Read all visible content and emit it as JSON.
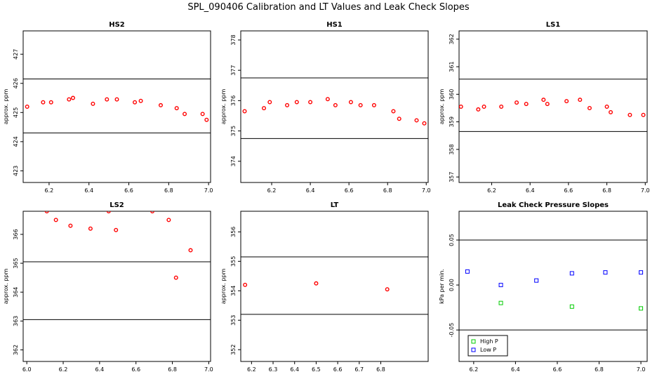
{
  "title": "SPL_090406  Calibration and LT Values and Leak Check Slopes",
  "colors": {
    "point_red": "#ff0000",
    "high_p": "#00cc00",
    "low_p": "#0000ff",
    "axis": "#000000"
  },
  "chart_data": [
    {
      "type": "scatter",
      "title": "HS2",
      "ylabel": "approx. ppm",
      "xlim": [
        6.07,
        7.01
      ],
      "ylim": [
        422.6,
        427.8
      ],
      "xticks": [
        6.2,
        6.4,
        6.6,
        6.8,
        7.0
      ],
      "yticks": [
        423,
        424,
        425,
        426,
        427
      ],
      "hlines": [
        426.15,
        424.3
      ],
      "series": [
        {
          "color": "#ff0000",
          "x": [
            6.09,
            6.17,
            6.21,
            6.3,
            6.32,
            6.42,
            6.49,
            6.54,
            6.63,
            6.66,
            6.76,
            6.84,
            6.88,
            6.97,
            6.99
          ],
          "y": [
            425.2,
            425.35,
            425.35,
            425.45,
            425.5,
            425.3,
            425.45,
            425.45,
            425.35,
            425.4,
            425.25,
            425.15,
            424.95,
            424.95,
            424.75
          ]
        }
      ]
    },
    {
      "type": "scatter",
      "title": "HS1",
      "ylabel": "approx. ppm",
      "xlim": [
        6.04,
        7.01
      ],
      "ylim": [
        373.3,
        378.3
      ],
      "xticks": [
        6.2,
        6.4,
        6.6,
        6.8,
        7.0
      ],
      "yticks": [
        374,
        375,
        376,
        377,
        378
      ],
      "hlines": [
        376.75,
        374.75
      ],
      "series": [
        {
          "color": "#ff0000",
          "x": [
            6.06,
            6.16,
            6.19,
            6.28,
            6.33,
            6.4,
            6.49,
            6.53,
            6.61,
            6.66,
            6.73,
            6.83,
            6.86,
            6.95,
            6.99
          ],
          "y": [
            375.65,
            375.75,
            375.95,
            375.85,
            375.95,
            375.95,
            376.05,
            375.85,
            375.95,
            375.85,
            375.85,
            375.65,
            375.4,
            375.35,
            375.25
          ]
        }
      ]
    },
    {
      "type": "scatter",
      "title": "LS1",
      "ylabel": "approx. ppm",
      "xlim": [
        6.03,
        7.01
      ],
      "ylim": [
        356.8,
        362.3
      ],
      "xticks": [
        6.2,
        6.4,
        6.6,
        6.8,
        7.0
      ],
      "yticks": [
        357,
        358,
        359,
        360,
        361,
        362
      ],
      "hlines": [
        360.55,
        358.65
      ],
      "series": [
        {
          "color": "#ff0000",
          "x": [
            6.04,
            6.13,
            6.16,
            6.25,
            6.33,
            6.38,
            6.47,
            6.49,
            6.59,
            6.66,
            6.71,
            6.8,
            6.82,
            6.92,
            6.99
          ],
          "y": [
            359.55,
            359.45,
            359.55,
            359.55,
            359.7,
            359.65,
            359.8,
            359.65,
            359.75,
            359.8,
            359.5,
            359.55,
            359.35,
            359.25,
            359.25
          ]
        }
      ]
    },
    {
      "type": "scatter",
      "title": "LS2",
      "ylabel": "approx. ppm",
      "xlim": [
        5.98,
        7.01
      ],
      "ylim": [
        361.6,
        366.8
      ],
      "xticks": [
        6.0,
        6.2,
        6.4,
        6.6,
        6.8,
        7.0
      ],
      "yticks": [
        362,
        363,
        364,
        365,
        366
      ],
      "hlines": [
        365.05,
        363.05
      ],
      "series": [
        {
          "color": "#ff0000",
          "x": [
            6.11,
            6.16,
            6.24,
            6.35,
            6.45,
            6.49,
            6.69,
            6.78,
            6.82,
            6.9
          ],
          "y": [
            366.8,
            366.5,
            366.3,
            366.2,
            366.8,
            366.15,
            366.8,
            366.5,
            364.5,
            365.45
          ]
        }
      ]
    },
    {
      "type": "scatter",
      "title": "LT",
      "ylabel": "approx. ppm",
      "xlim": [
        6.15,
        7.02
      ],
      "ylim": [
        351.6,
        356.7
      ],
      "xticks": [
        6.2,
        6.3,
        6.4,
        6.5,
        6.6,
        6.7,
        6.8
      ],
      "yticks": [
        352,
        353,
        354,
        355,
        356
      ],
      "hlines": [
        355.15,
        353.2
      ],
      "series": [
        {
          "color": "#ff0000",
          "x": [
            6.17,
            6.5,
            6.83
          ],
          "y": [
            354.2,
            354.25,
            354.05
          ]
        }
      ]
    },
    {
      "type": "scatter",
      "title": "Leak Check Pressure Slopes",
      "ylabel": "kPa per min.",
      "xlim": [
        6.13,
        7.03
      ],
      "ylim": [
        -0.085,
        0.082
      ],
      "xticks": [
        6.2,
        6.4,
        6.6,
        6.8,
        7.0
      ],
      "yticks": [
        -0.05,
        0.0,
        0.05
      ],
      "ytick_labels": [
        "-0.05",
        "0.00",
        "0.05"
      ],
      "hlines": [
        0.05,
        -0.05
      ],
      "legend": [
        "High P",
        "Low P"
      ],
      "legend_position": "bottom-left",
      "series": [
        {
          "name": "High P",
          "color": "#00cc00",
          "x": [
            6.33,
            6.67,
            7.0
          ],
          "y": [
            -0.02,
            -0.024,
            -0.026
          ]
        },
        {
          "name": "Low P",
          "color": "#0000ff",
          "x": [
            6.17,
            6.33,
            6.5,
            6.67,
            6.83,
            7.0
          ],
          "y": [
            0.015,
            0.0,
            0.005,
            0.013,
            0.014,
            0.014
          ]
        }
      ]
    }
  ]
}
